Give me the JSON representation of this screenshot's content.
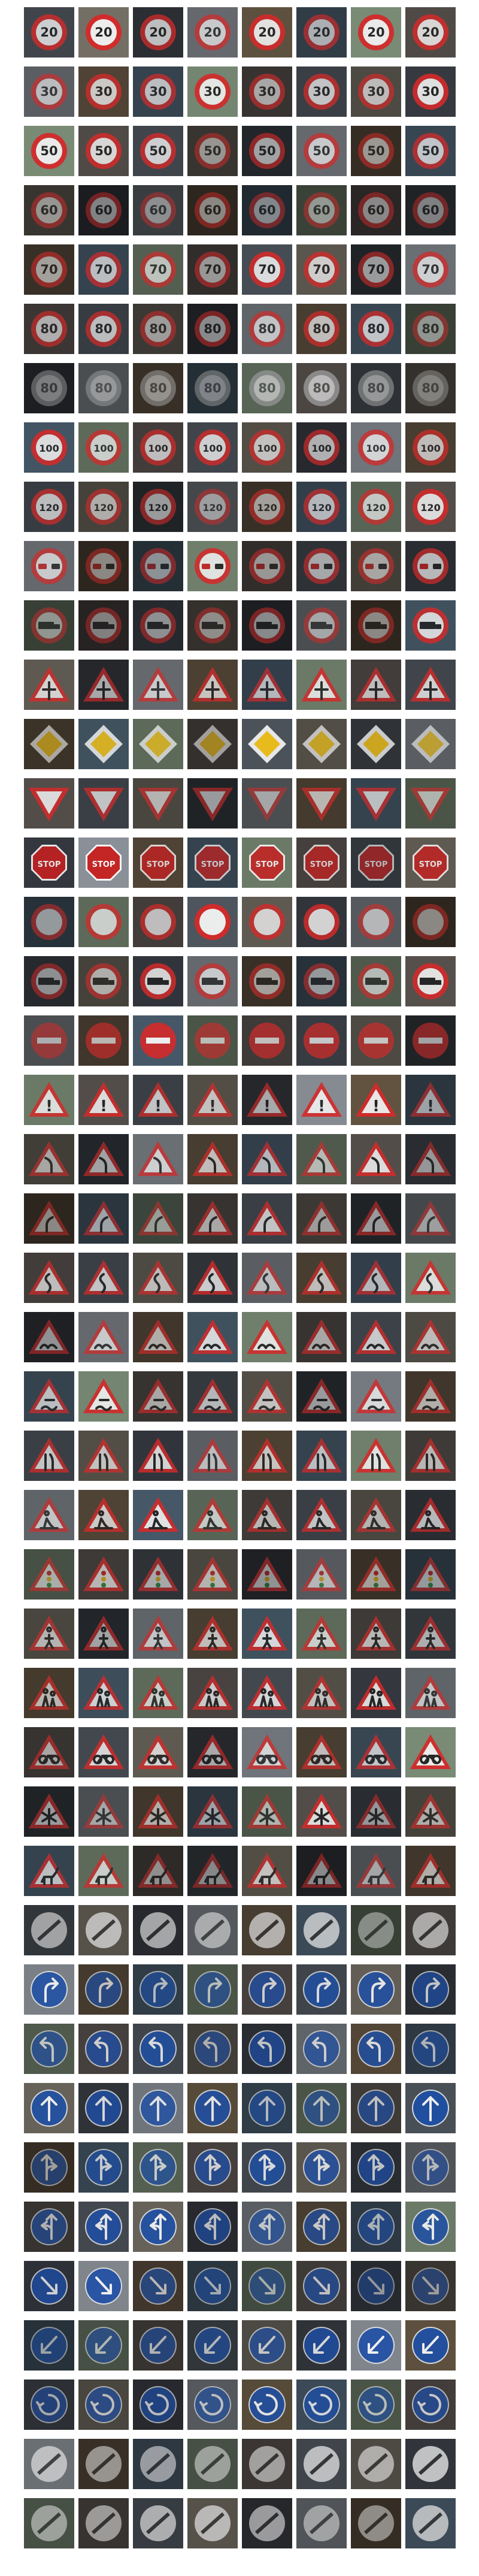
{
  "grid": {
    "columns": 8,
    "rows": [
      {
        "sign": "speed-limit-20",
        "shape": "circle",
        "color": "#d42a2a",
        "fill": "#f1f1f1",
        "glyph": "20",
        "glyph_color": "#222222",
        "brightness": [
          0.7,
          0.95,
          0.6,
          0.55,
          0.85,
          0.45,
          0.9,
          0.75
        ]
      },
      {
        "sign": "speed-limit-30",
        "shape": "circle",
        "color": "#d42a2a",
        "fill": "#f1f1f1",
        "glyph": "30",
        "glyph_color": "#222222",
        "brightness": [
          0.45,
          0.65,
          0.55,
          0.85,
          0.4,
          0.6,
          0.5,
          0.85
        ]
      },
      {
        "sign": "speed-limit-50",
        "shape": "circle",
        "color": "#d42a2a",
        "fill": "#f1f1f1",
        "glyph": "50",
        "glyph_color": "#222222",
        "brightness": [
          0.9,
          0.75,
          0.7,
          0.25,
          0.4,
          0.55,
          0.3,
          0.6
        ]
      },
      {
        "sign": "speed-limit-60",
        "shape": "circle",
        "color": "#d42a2a",
        "fill": "#f1f1f1",
        "glyph": "60",
        "glyph_color": "#222222",
        "brightness": [
          0.25,
          0.2,
          0.15,
          0.2,
          0.18,
          0.22,
          0.2,
          0.15
        ]
      },
      {
        "sign": "speed-limit-70",
        "shape": "circle",
        "color": "#d42a2a",
        "fill": "#f1f1f1",
        "glyph": "70",
        "glyph_color": "#222222",
        "brightness": [
          0.35,
          0.55,
          0.5,
          0.3,
          0.8,
          0.65,
          0.35,
          0.6
        ]
      },
      {
        "sign": "speed-limit-80",
        "shape": "circle",
        "color": "#d42a2a",
        "fill": "#f1f1f1",
        "glyph": "80",
        "glyph_color": "#222222",
        "brightness": [
          0.45,
          0.55,
          0.3,
          0.25,
          0.5,
          0.55,
          0.6,
          0.2
        ]
      },
      {
        "sign": "end-of-speed-limit-80",
        "shape": "circle",
        "color": "#9a9a9a",
        "fill": "#d8d8d8",
        "glyph": "80",
        "glyph_color": "#555555",
        "brightness": [
          0.25,
          0.3,
          0.35,
          0.25,
          0.55,
          0.7,
          0.4,
          0.2
        ]
      },
      {
        "sign": "speed-limit-100",
        "shape": "circle",
        "color": "#d42a2a",
        "fill": "#f1f1f1",
        "glyph": "100",
        "glyph_color": "#222222",
        "brightness": [
          0.8,
          0.6,
          0.55,
          0.7,
          0.55,
          0.5,
          0.65,
          0.55
        ]
      },
      {
        "sign": "speed-limit-120",
        "shape": "circle",
        "color": "#d42a2a",
        "fill": "#f1f1f1",
        "glyph": "120",
        "glyph_color": "#222222",
        "brightness": [
          0.55,
          0.4,
          0.35,
          0.25,
          0.35,
          0.5,
          0.55,
          0.8
        ]
      },
      {
        "sign": "no-overtaking",
        "shape": "circle",
        "color": "#d42a2a",
        "fill": "#f1f1f1",
        "glyph": "cars",
        "glyph_color": "#222222",
        "brightness": [
          0.55,
          0.2,
          0.25,
          0.8,
          0.3,
          0.4,
          0.35,
          0.55
        ]
      },
      {
        "sign": "no-overtaking-trucks",
        "shape": "circle",
        "color": "#d42a2a",
        "fill": "#f1f1f1",
        "glyph": "truck",
        "glyph_color": "#222222",
        "brightness": [
          0.2,
          0.15,
          0.25,
          0.2,
          0.25,
          0.3,
          0.2,
          0.75
        ]
      },
      {
        "sign": "right-of-way-at-next-intersection",
        "shape": "triangle",
        "color": "#d42a2a",
        "fill": "#f1f1f1",
        "glyph": "cross",
        "glyph_color": "#222222",
        "brightness": [
          0.7,
          0.45,
          0.55,
          0.6,
          0.5,
          0.75,
          0.55,
          0.7
        ]
      },
      {
        "sign": "priority-road",
        "shape": "diamond",
        "color": "#f2c21a",
        "fill": "#f1f1f1",
        "glyph": "",
        "glyph_color": "#222222",
        "brightness": [
          0.4,
          0.75,
          0.6,
          0.35,
          0.9,
          0.55,
          0.7,
          0.45
        ]
      },
      {
        "sign": "yield",
        "shape": "triangle-down",
        "color": "#d42a2a",
        "fill": "#f1f1f1",
        "glyph": "",
        "glyph_color": "#222222",
        "brightness": [
          0.8,
          0.6,
          0.45,
          0.35,
          0.3,
          0.5,
          0.55,
          0.4
        ]
      },
      {
        "sign": "stop",
        "shape": "octagon",
        "color": "#c82020",
        "fill": "#c82020",
        "glyph": "STOP",
        "glyph_color": "#ffffff",
        "brightness": [
          0.8,
          0.9,
          0.65,
          0.55,
          0.75,
          0.6,
          0.45,
          0.7
        ]
      },
      {
        "sign": "no-vehicles",
        "shape": "circle",
        "color": "#d42a2a",
        "fill": "#f1f1f1",
        "glyph": "",
        "glyph_color": "#222222",
        "brightness": [
          0.3,
          0.6,
          0.55,
          0.95,
          0.7,
          0.75,
          0.4,
          0.2
        ]
      },
      {
        "sign": "vehicles-over-3.5t-prohibited",
        "shape": "circle",
        "color": "#d42a2a",
        "fill": "#f1f1f1",
        "glyph": "truck",
        "glyph_color": "#222222",
        "brightness": [
          0.25,
          0.4,
          0.75,
          0.55,
          0.35,
          0.3,
          0.45,
          0.85
        ]
      },
      {
        "sign": "no-entry",
        "shape": "circle-solid",
        "color": "#d42a2a",
        "fill": "#ffffff",
        "glyph": "",
        "glyph_color": "#ffffff",
        "brightness": [
          0.3,
          0.45,
          0.85,
          0.4,
          0.5,
          0.55,
          0.5,
          0.35
        ]
      },
      {
        "sign": "general-caution",
        "shape": "triangle",
        "color": "#d42a2a",
        "fill": "#f1f1f1",
        "glyph": "!",
        "glyph_color": "#222222",
        "brightness": [
          0.75,
          0.8,
          0.6,
          0.55,
          0.45,
          0.85,
          0.9,
          0.35
        ]
      },
      {
        "sign": "dangerous-curve-left",
        "shape": "triangle",
        "color": "#d42a2a",
        "fill": "#f1f1f1",
        "glyph": "curve-left",
        "glyph_color": "#222222",
        "brightness": [
          0.35,
          0.4,
          0.6,
          0.55,
          0.5,
          0.45,
          0.8,
          0.3
        ]
      },
      {
        "sign": "dangerous-curve-right",
        "shape": "triangle",
        "color": "#d42a2a",
        "fill": "#f1f1f1",
        "glyph": "curve-right",
        "glyph_color": "#222222",
        "brightness": [
          0.2,
          0.35,
          0.25,
          0.4,
          0.6,
          0.3,
          0.35,
          0.25
        ]
      },
      {
        "sign": "double-curve",
        "shape": "triangle",
        "color": "#d42a2a",
        "fill": "#f1f1f1",
        "glyph": "double-curve",
        "glyph_color": "#222222",
        "brightness": [
          0.55,
          0.6,
          0.5,
          0.7,
          0.45,
          0.55,
          0.5,
          0.75
        ]
      },
      {
        "sign": "bumpy-road",
        "shape": "triangle",
        "color": "#d42a2a",
        "fill": "#f1f1f1",
        "glyph": "bumps",
        "glyph_color": "#222222",
        "brightness": [
          0.3,
          0.55,
          0.45,
          0.75,
          0.8,
          0.4,
          0.65,
          0.5
        ]
      },
      {
        "sign": "slippery-road",
        "shape": "triangle",
        "color": "#d42a2a",
        "fill": "#f1f1f1",
        "glyph": "skid",
        "glyph_color": "#222222",
        "brightness": [
          0.55,
          0.85,
          0.4,
          0.5,
          0.55,
          0.35,
          0.7,
          0.45
        ]
      },
      {
        "sign": "road-narrows-right",
        "shape": "triangle",
        "color": "#d42a2a",
        "fill": "#f1f1f1",
        "glyph": "narrow",
        "glyph_color": "#222222",
        "brightness": [
          0.6,
          0.55,
          0.75,
          0.45,
          0.6,
          0.55,
          0.8,
          0.5
        ]
      },
      {
        "sign": "road-work",
        "shape": "triangle",
        "color": "#d42a2a",
        "fill": "#f1f1f1",
        "glyph": "worker",
        "glyph_color": "#222222",
        "brightness": [
          0.5,
          0.65,
          0.85,
          0.55,
          0.5,
          0.6,
          0.45,
          0.55
        ]
      },
      {
        "sign": "traffic-signals",
        "shape": "triangle",
        "color": "#d42a2a",
        "fill": "#f1f1f1",
        "glyph": "lights",
        "glyph_color": "#222222",
        "brightness": [
          0.35,
          0.5,
          0.4,
          0.45,
          0.3,
          0.4,
          0.35,
          0.3
        ]
      },
      {
        "sign": "pedestrians",
        "shape": "triangle",
        "color": "#d42a2a",
        "fill": "#f1f1f1",
        "glyph": "person",
        "glyph_color": "#222222",
        "brightness": [
          0.45,
          0.4,
          0.5,
          0.55,
          0.75,
          0.6,
          0.5,
          0.45
        ]
      },
      {
        "sign": "children-crossing",
        "shape": "triangle",
        "color": "#d42a2a",
        "fill": "#f1f1f1",
        "glyph": "children",
        "glyph_color": "#222222",
        "brightness": [
          0.5,
          0.7,
          0.6,
          0.65,
          0.75,
          0.55,
          0.8,
          0.5
        ]
      },
      {
        "sign": "bicycles-crossing",
        "shape": "triangle",
        "color": "#d42a2a",
        "fill": "#f1f1f1",
        "glyph": "bike",
        "glyph_color": "#222222",
        "brightness": [
          0.4,
          0.75,
          0.7,
          0.45,
          0.65,
          0.55,
          0.6,
          0.9
        ]
      },
      {
        "sign": "beware-of-ice-snow",
        "shape": "triangle",
        "color": "#d42a2a",
        "fill": "#f1f1f1",
        "glyph": "snow",
        "glyph_color": "#222222",
        "brightness": [
          0.35,
          0.3,
          0.45,
          0.35,
          0.4,
          0.8,
          0.3,
          0.4
        ]
      },
      {
        "sign": "wild-animals-crossing",
        "shape": "triangle",
        "color": "#d42a2a",
        "fill": "#f1f1f1",
        "glyph": "deer",
        "glyph_color": "#222222",
        "brightness": [
          0.55,
          0.6,
          0.25,
          0.2,
          0.55,
          0.25,
          0.3,
          0.45
        ]
      },
      {
        "sign": "end-of-all-limits",
        "shape": "circle-end",
        "color": "#bbbbbb",
        "fill": "#e0e0e0",
        "glyph": "",
        "glyph_color": "#555555",
        "brightness": [
          0.45,
          0.6,
          0.5,
          0.4,
          0.55,
          0.65,
          0.2,
          0.5
        ]
      },
      {
        "sign": "turn-right-ahead",
        "shape": "circle-blue",
        "color": "#1d4fa8",
        "fill": "#1d4fa8",
        "glyph": "turn-right",
        "glyph_color": "#ffffff",
        "brightness": [
          0.75,
          0.5,
          0.45,
          0.4,
          0.6,
          0.7,
          0.75,
          0.55
        ]
      },
      {
        "sign": "turn-left-ahead",
        "shape": "circle-blue",
        "color": "#1d4fa8",
        "fill": "#1d4fa8",
        "glyph": "turn-left",
        "glyph_color": "#ffffff",
        "brightness": [
          0.45,
          0.6,
          0.7,
          0.35,
          0.55,
          0.5,
          0.7,
          0.4
        ]
      },
      {
        "sign": "ahead-only",
        "shape": "circle-blue",
        "color": "#1d4fa8",
        "fill": "#1d4fa8",
        "glyph": "up",
        "glyph_color": "#ffffff",
        "brightness": [
          0.8,
          0.7,
          0.65,
          0.75,
          0.45,
          0.4,
          0.5,
          0.85
        ]
      },
      {
        "sign": "go-straight-or-right",
        "shape": "circle-blue",
        "color": "#1d4fa8",
        "fill": "#1d4fa8",
        "glyph": "straight-right",
        "glyph_color": "#ffffff",
        "brightness": [
          0.3,
          0.55,
          0.5,
          0.6,
          0.7,
          0.65,
          0.55,
          0.35
        ]
      },
      {
        "sign": "go-straight-or-left",
        "shape": "circle-blue",
        "color": "#1d4fa8",
        "fill": "#1d4fa8",
        "glyph": "straight-left",
        "glyph_color": "#ffffff",
        "brightness": [
          0.4,
          0.75,
          0.8,
          0.5,
          0.45,
          0.55,
          0.4,
          0.75
        ]
      },
      {
        "sign": "keep-right",
        "shape": "circle-blue",
        "color": "#1d4fa8",
        "fill": "#1d4fa8",
        "glyph": "keep-right",
        "glyph_color": "#ffffff",
        "brightness": [
          0.65,
          0.8,
          0.45,
          0.35,
          0.3,
          0.5,
          0.25,
          0.25
        ]
      },
      {
        "sign": "keep-left",
        "shape": "circle-blue",
        "color": "#1d4fa8",
        "fill": "#1d4fa8",
        "glyph": "keep-left",
        "glyph_color": "#ffffff",
        "brightness": [
          0.3,
          0.35,
          0.4,
          0.45,
          0.5,
          0.7,
          0.8,
          0.85
        ]
      },
      {
        "sign": "roundabout-mandatory",
        "shape": "circle-blue",
        "color": "#1d4fa8",
        "fill": "#1d4fa8",
        "glyph": "roundabout",
        "glyph_color": "#ffffff",
        "brightness": [
          0.35,
          0.45,
          0.5,
          0.4,
          0.75,
          0.65,
          0.4,
          0.55
        ]
      },
      {
        "sign": "end-of-no-passing",
        "shape": "circle-end",
        "color": "#aaaaaa",
        "fill": "#dcdcdc",
        "glyph": "",
        "glyph_color": "#555555",
        "brightness": [
          0.6,
          0.35,
          0.4,
          0.35,
          0.45,
          0.7,
          0.5,
          0.75
        ]
      },
      {
        "sign": "end-of-no-passing-trucks",
        "shape": "circle-end",
        "color": "#aaaaaa",
        "fill": "#dcdcdc",
        "glyph": "",
        "glyph_color": "#555555",
        "brightness": [
          0.35,
          0.4,
          0.55,
          0.6,
          0.45,
          0.35,
          0.3,
          0.65
        ]
      }
    ]
  }
}
